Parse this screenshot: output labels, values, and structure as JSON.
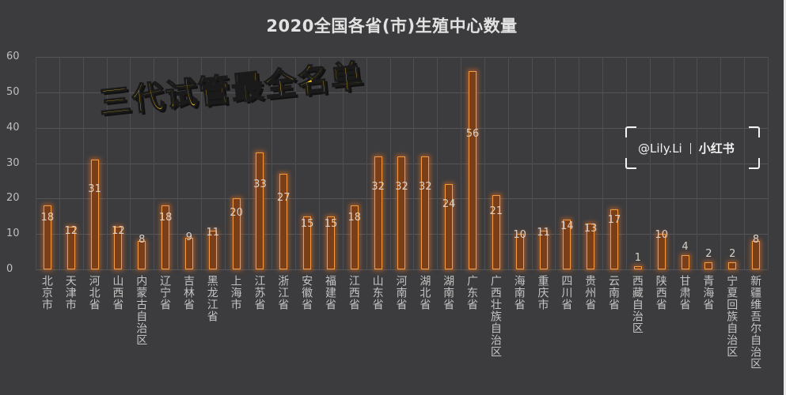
{
  "chart_data": {
    "type": "bar",
    "title": "2020全国各省(市)生殖中心数量",
    "xlabel": "",
    "ylabel": "",
    "ylim": [
      0,
      60
    ],
    "yticks": [
      0,
      10,
      20,
      30,
      40,
      50,
      60
    ],
    "grid": true,
    "legend": null,
    "categories": [
      "北京市",
      "天津市",
      "河北省",
      "山西省",
      "内蒙古自治区",
      "辽宁省",
      "吉林省",
      "黑龙江省",
      "上海市",
      "江苏省",
      "浙江省",
      "安徽省",
      "福建省",
      "江西省",
      "山东省",
      "河南省",
      "湖北省",
      "湖南省",
      "广东省",
      "广西壮族自治区",
      "海南省",
      "重庆市",
      "四川省",
      "贵州省",
      "云南省",
      "西藏自治区",
      "陕西省",
      "甘肃省",
      "青海省",
      "宁夏回族自治区",
      "新疆维吾尔自治区"
    ],
    "values": [
      18,
      12,
      31,
      12,
      8,
      18,
      9,
      11,
      20,
      33,
      27,
      15,
      15,
      18,
      32,
      32,
      32,
      24,
      56,
      21,
      10,
      11,
      14,
      13,
      17,
      1,
      10,
      4,
      2,
      2,
      8
    ],
    "bar_color": "#f39a45"
  },
  "overlay": {
    "headline": "三代试管最全名单",
    "color": "#f5c518"
  },
  "watermark": {
    "handle": "@Lily.Li",
    "brand": "小红书"
  }
}
